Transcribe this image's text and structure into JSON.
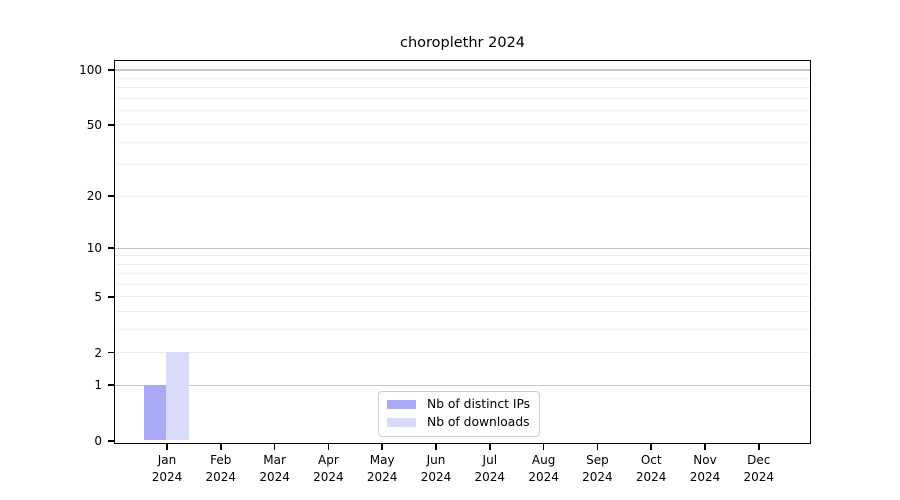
{
  "chart_data": {
    "type": "bar",
    "title": "choroplethr 2024",
    "xlabel": "",
    "ylabel": "",
    "yscale": "log1p",
    "ylim": [
      0,
      100
    ],
    "y_tick_values": [
      0,
      1,
      2,
      5,
      10,
      20,
      50,
      100
    ],
    "y_tick_labels": [
      "0",
      "1",
      "2",
      "5",
      "10",
      "20",
      "50",
      "100"
    ],
    "y_major_gridlines": [
      1,
      10,
      100
    ],
    "y_minor_gridlines": [
      2,
      3,
      4,
      5,
      6,
      7,
      8,
      9,
      20,
      30,
      40,
      50,
      60,
      70,
      80,
      90
    ],
    "categories": [
      "Jan",
      "Feb",
      "Mar",
      "Apr",
      "May",
      "Jun",
      "Jul",
      "Aug",
      "Sep",
      "Oct",
      "Nov",
      "Dec"
    ],
    "category_sub_label": "2024",
    "series": [
      {
        "name": "Nb of distinct IPs",
        "color": "#a9a9f8",
        "values": [
          1,
          0,
          0,
          0,
          0,
          0,
          0,
          0,
          0,
          0,
          0,
          0
        ]
      },
      {
        "name": "Nb of downloads",
        "color": "#d9d9f8",
        "values": [
          2,
          0,
          0,
          0,
          0,
          0,
          0,
          0,
          0,
          0,
          0,
          0
        ]
      }
    ],
    "legend": {
      "position": "bottom-center-inside"
    },
    "colors": {
      "background": "#ffffff",
      "axis": "#000000",
      "major_grid": "#c7c7c7",
      "minor_grid": "#ececec",
      "legend_border": "#cccccc",
      "text": "#000000"
    },
    "grid": "horizontal-only"
  }
}
